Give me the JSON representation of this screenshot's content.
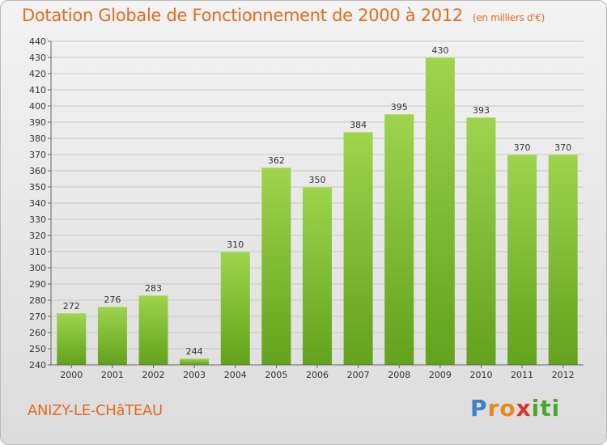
{
  "title": "Dotation Globale de Fonctionnement de 2000 à 2012",
  "unit_note": "(en milliers d'€)",
  "commune": "ANIZY-LE-CHâTEAU",
  "logo": {
    "letters": [
      "P",
      "r",
      "o",
      "x",
      "i",
      "t",
      "i"
    ],
    "colors": [
      "#3d7fd0",
      "#e58a1f",
      "#e58a1f",
      "#d9352b",
      "#4aa82f",
      "#4aa82f",
      "#4aa82f"
    ]
  },
  "colors": {
    "bar_top": "#9ed44e",
    "bar_bottom": "#62a21c",
    "title": "#e06d1f"
  },
  "chart_data": {
    "type": "bar",
    "categories": [
      "2000",
      "2001",
      "2002",
      "2003",
      "2004",
      "2005",
      "2006",
      "2007",
      "2008",
      "2009",
      "2010",
      "2011",
      "2012"
    ],
    "values": [
      272,
      276,
      283,
      244,
      310,
      362,
      350,
      384,
      395,
      430,
      393,
      370,
      370
    ],
    "ylim": [
      240,
      440
    ],
    "ytick_step": 10,
    "grid": true,
    "xlabel": "",
    "ylabel": ""
  }
}
